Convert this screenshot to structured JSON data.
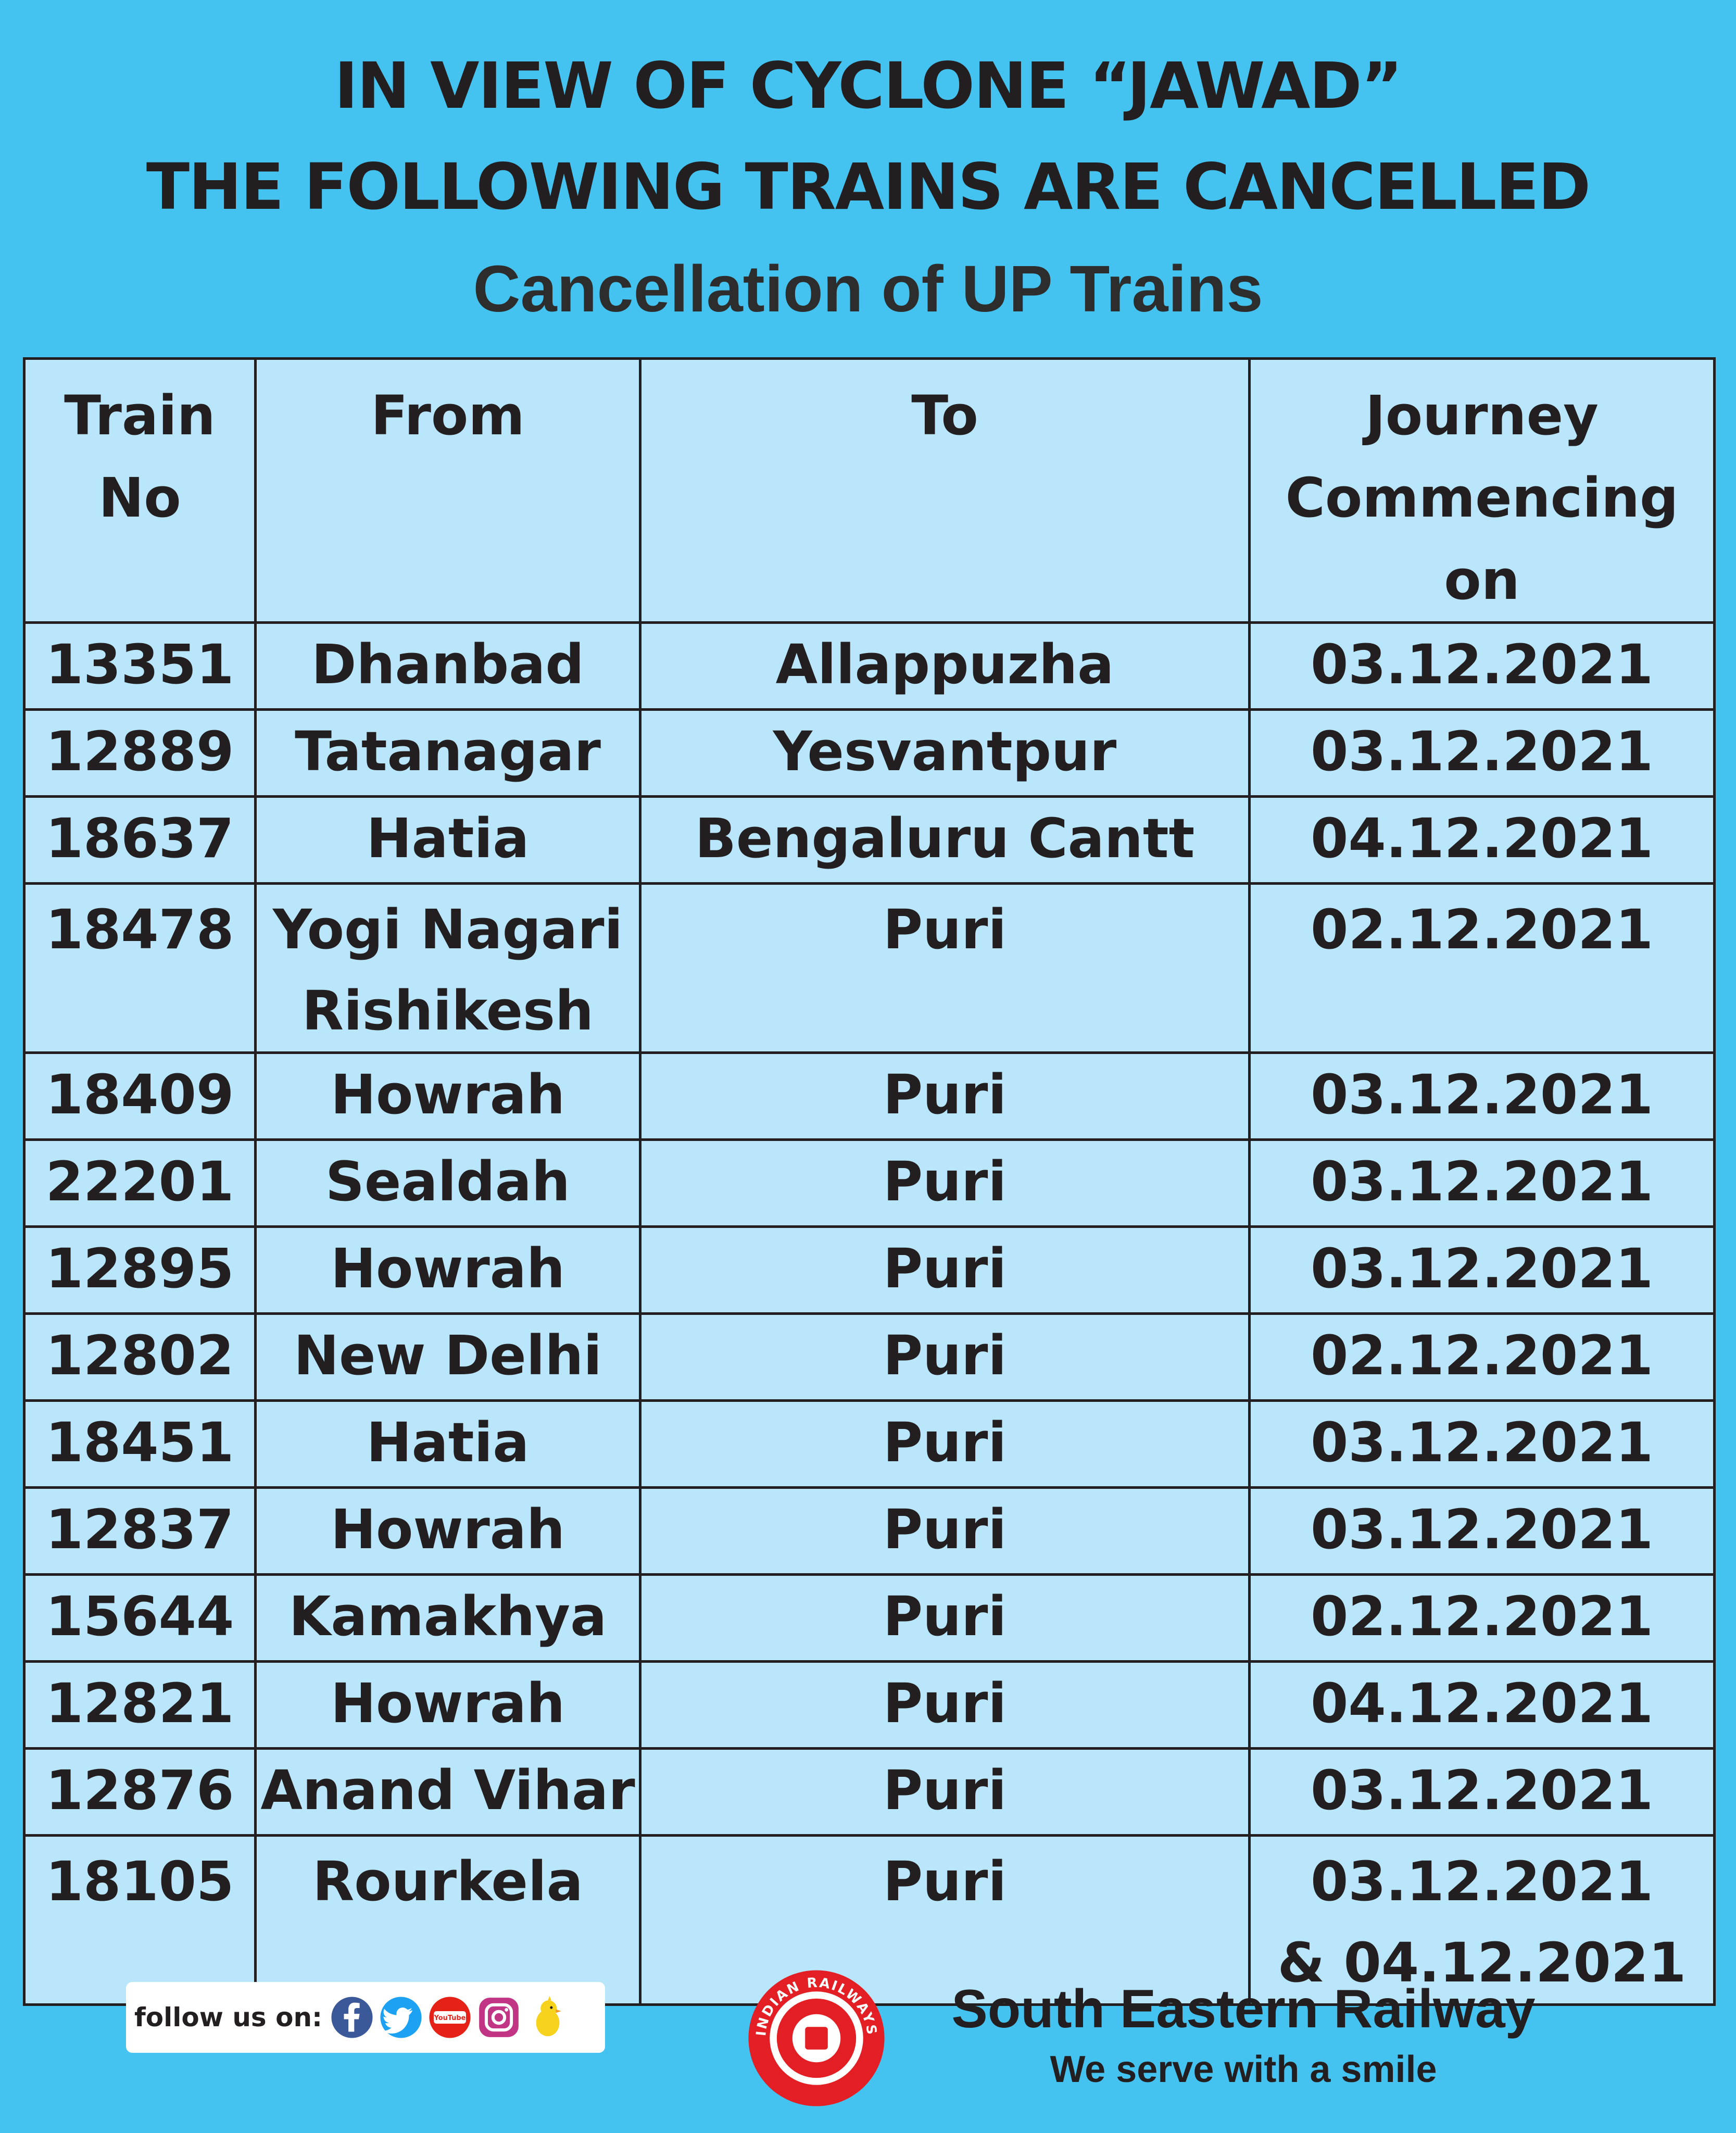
{
  "header": {
    "line1": "IN VIEW OF CYCLONE “JAWAD”",
    "line2": "THE FOLLOWING TRAINS ARE CANCELLED",
    "subtitle": "Cancellation of UP Trains"
  },
  "table": {
    "columns": [
      "Train\nNo",
      "From",
      "To",
      "Journey\nCommencing\non"
    ],
    "rows": [
      [
        "13351",
        "Dhanbad",
        "Allappuzha",
        "03.12.2021"
      ],
      [
        "12889",
        "Tatanagar",
        "Yesvantpur",
        "03.12.2021"
      ],
      [
        "18637",
        "Hatia",
        "Bengaluru Cantt",
        "04.12.2021"
      ],
      [
        "18478",
        "Yogi Nagari\nRishikesh",
        "Puri",
        "02.12.2021"
      ],
      [
        "18409",
        "Howrah",
        "Puri",
        "03.12.2021"
      ],
      [
        "22201",
        "Sealdah",
        "Puri",
        "03.12.2021"
      ],
      [
        "12895",
        "Howrah",
        "Puri",
        "03.12.2021"
      ],
      [
        "12802",
        "New Delhi",
        "Puri",
        "02.12.2021"
      ],
      [
        "18451",
        "Hatia",
        "Puri",
        "03.12.2021"
      ],
      [
        "12837",
        "Howrah",
        "Puri",
        "03.12.2021"
      ],
      [
        "15644",
        "Kamakhya",
        "Puri",
        "02.12.2021"
      ],
      [
        "12821",
        "Howrah",
        "Puri",
        "04.12.2021"
      ],
      [
        "12876",
        "Anand Vihar",
        "Puri",
        "03.12.2021"
      ],
      [
        "18105",
        "Rourkela",
        "Puri",
        "03.12.2021\n& 04.12.2021"
      ]
    ]
  },
  "footer": {
    "follow_label": "follow us on:",
    "social_icons": [
      "facebook-icon",
      "twitter-icon",
      "youtube-icon",
      "instagram-icon",
      "koo-icon"
    ],
    "youtube_text": "YouTube",
    "logo_text": "INDIAN RAILWAYS",
    "organization": "South Eastern Railway",
    "tagline": "We serve with a smile"
  },
  "colors": {
    "background": "#45c3f0",
    "table_fill": "#b9e6fa",
    "text": "#231f20",
    "logo_red": "#e31e24"
  }
}
